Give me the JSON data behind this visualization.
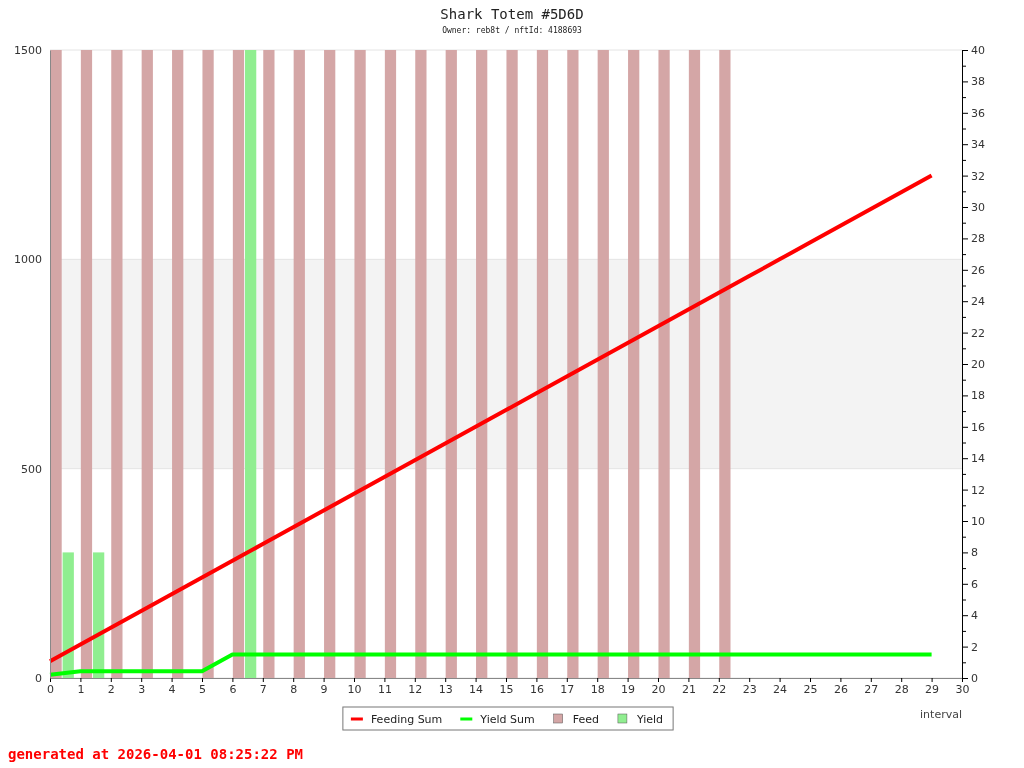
{
  "chart_data": {
    "type": "bar",
    "title": "Shark Totem #5D6D",
    "subtitle": "Owner: reb8t / nftId: 4188693",
    "xlabel": "interval",
    "annotations": [
      "generated at 2026-04-01 08:25:22 PM"
    ],
    "xlim": [
      0,
      30
    ],
    "xticks": [
      0,
      1,
      2,
      3,
      4,
      5,
      6,
      7,
      8,
      9,
      10,
      11,
      12,
      13,
      14,
      15,
      16,
      17,
      18,
      19,
      20,
      21,
      22,
      23,
      24,
      25,
      26,
      27,
      28,
      29,
      30
    ],
    "ylim": [
      0,
      1500
    ],
    "yticks": [
      0,
      500,
      1000,
      1500
    ],
    "y2lim": [
      0,
      40
    ],
    "y2ticks": [
      0,
      {
        "value": 1,
        "label": null
      },
      2,
      {
        "value": 3,
        "label": null
      },
      4,
      {
        "value": 5,
        "label": null
      },
      6,
      {
        "value": 7,
        "label": null
      },
      8,
      {
        "value": 9,
        "label": null
      },
      10,
      {
        "value": 11,
        "label": null
      },
      12,
      {
        "value": 13,
        "label": null
      },
      14,
      {
        "value": 15,
        "label": null
      },
      16,
      {
        "value": 17,
        "label": null
      },
      18,
      {
        "value": 19,
        "label": null
      },
      20,
      {
        "value": 21,
        "label": null
      },
      22,
      {
        "value": 23,
        "label": null
      },
      24,
      {
        "value": 25,
        "label": null
      },
      26,
      {
        "value": 27,
        "label": null
      },
      28,
      {
        "value": 29,
        "label": null
      },
      30,
      {
        "value": 31,
        "label": null
      },
      32,
      {
        "value": 33,
        "label": null
      },
      34,
      {
        "value": 35,
        "label": null
      },
      36,
      {
        "value": 37,
        "label": null
      },
      38,
      {
        "value": 39,
        "label": null
      },
      40
    ],
    "bands": [
      {
        "axis": "y",
        "from": 500,
        "to": 1000,
        "color": "#f3f3f3"
      }
    ],
    "grid": "y",
    "legend": "bottom",
    "series": [
      {
        "name": "Feeding Sum",
        "type": "line",
        "color": "#ff0000",
        "x": [
          0,
          1,
          2,
          3,
          4,
          5,
          6,
          7,
          8,
          9,
          10,
          11,
          12,
          13,
          14,
          15,
          16,
          17,
          18,
          19,
          20,
          21,
          22,
          23,
          24,
          25,
          26,
          27,
          28,
          29
        ],
        "values": [
          40,
          80,
          120,
          160,
          200,
          240,
          280,
          320,
          360,
          400,
          440,
          480,
          520,
          560,
          600,
          640,
          680,
          720,
          760,
          800,
          840,
          880,
          920,
          960,
          1000,
          1040,
          1080,
          1120,
          1160,
          1200
        ]
      },
      {
        "name": "Yield Sum",
        "type": "line",
        "color": "#00ff00",
        "x": [
          0,
          1,
          2,
          3,
          4,
          5,
          6,
          7,
          8,
          9,
          10,
          11,
          12,
          13,
          14,
          15,
          16,
          17,
          18,
          19,
          20,
          21,
          22,
          23,
          24,
          25,
          26,
          27,
          28,
          29
        ],
        "values": [
          8,
          16,
          16,
          16,
          16,
          16,
          56,
          56,
          56,
          56,
          56,
          56,
          56,
          56,
          56,
          56,
          56,
          56,
          56,
          56,
          56,
          56,
          56,
          56,
          56,
          56,
          56,
          56,
          56,
          56
        ]
      },
      {
        "name": "Feed",
        "axis": "y2",
        "color": "#d4a6a6",
        "x": [
          0.2,
          1.2,
          2.2,
          3.2,
          4.2,
          5.2,
          6.2,
          7.2,
          8.2,
          9.2,
          10.2,
          11.2,
          12.2,
          13.2,
          14.2,
          15.2,
          16.2,
          17.2,
          18.2,
          19.2,
          20.2,
          21.2,
          22.2
        ],
        "values": [
          40,
          40,
          40,
          40,
          40,
          40,
          40,
          40,
          40,
          40,
          40,
          40,
          40,
          40,
          40,
          40,
          40,
          40,
          40,
          40,
          40,
          40,
          40
        ]
      },
      {
        "name": "Yield",
        "axis": "y2",
        "color": "#90ee90",
        "x": [
          0.6,
          1.6,
          6.6
        ],
        "values": [
          8,
          8,
          40
        ]
      }
    ]
  }
}
